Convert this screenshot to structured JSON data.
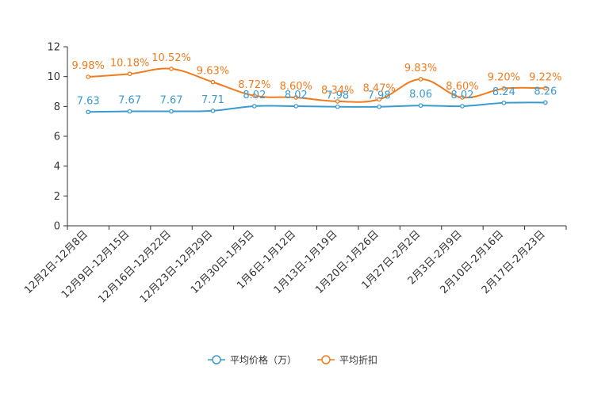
{
  "chart_data": {
    "type": "line",
    "categories": [
      "12月2日-12月8日",
      "12月9日-12月15日",
      "12月16日-12月22日",
      "12月23日-12月29日",
      "12月30日-1月5日",
      "1月6日-1月12日",
      "1月13日-1月19日",
      "1月20日-1月26日",
      "1月27日-2月2日",
      "2月3日-2月9日",
      "2月10日-2月16日",
      "2月17日-2月23日"
    ],
    "ylim": [
      0,
      12
    ],
    "yticks": [
      0,
      2,
      4,
      6,
      8,
      10,
      12
    ],
    "series": [
      {
        "name": "平均价格（万）",
        "color": "#3a9bd1",
        "values": [
          7.63,
          7.67,
          7.67,
          7.71,
          8.02,
          8.02,
          7.98,
          7.98,
          8.06,
          8.02,
          8.24,
          8.26
        ],
        "labels": [
          "7.63",
          "7.67",
          "7.67",
          "7.71",
          "8.02",
          "8.02",
          "7.98",
          "7.98",
          "8.06",
          "8.02",
          "8.24",
          "8.26"
        ]
      },
      {
        "name": "平均折扣",
        "color": "#f07c1e",
        "values": [
          9.98,
          10.18,
          10.52,
          9.63,
          8.72,
          8.6,
          8.34,
          8.47,
          9.83,
          8.6,
          9.2,
          9.22
        ],
        "labels": [
          "9.98%",
          "10.18%",
          "10.52%",
          "9.63%",
          "8.72%",
          "8.60%",
          "8.34%",
          "8.47%",
          "9.83%",
          "8.60%",
          "9.20%",
          "9.22%"
        ]
      }
    ],
    "legend_position": "bottom-center"
  }
}
